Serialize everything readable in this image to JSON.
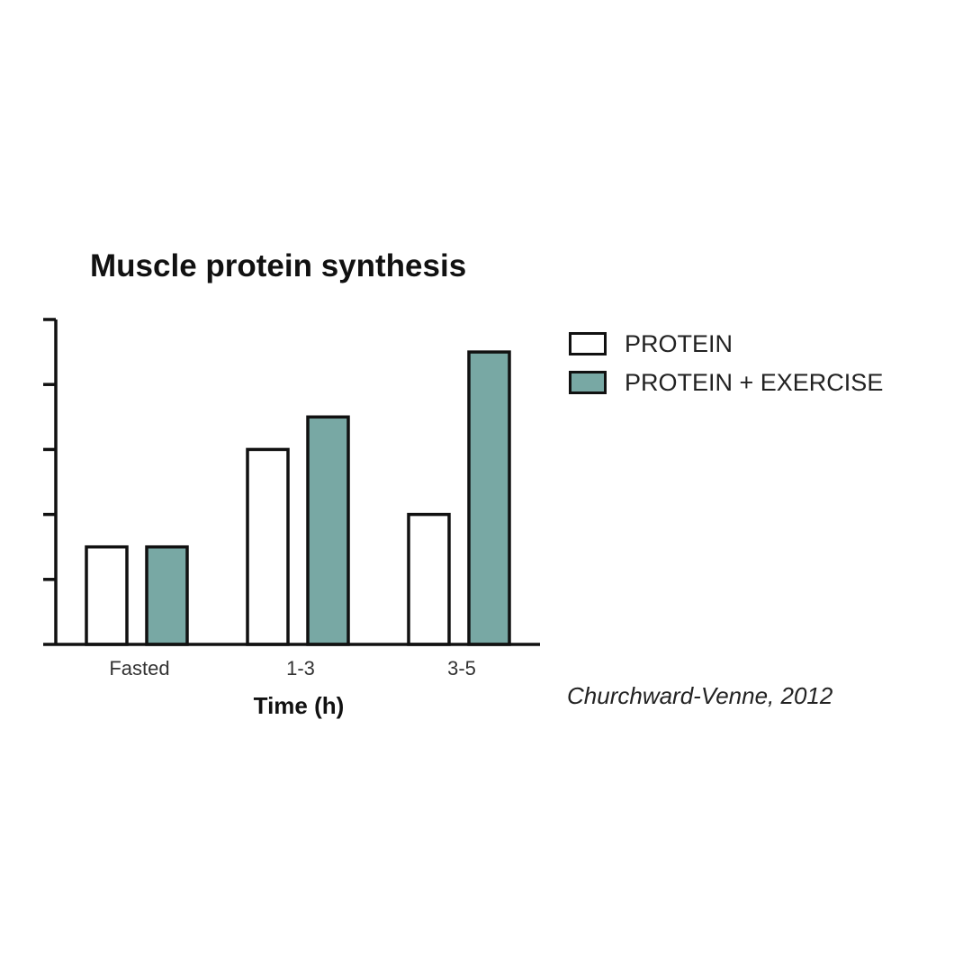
{
  "chart_data": {
    "type": "bar",
    "title": "Muscle protein synthesis",
    "xlabel": "Time (h)",
    "ylabel": "",
    "categories": [
      "Fasted",
      "1-3",
      "3-5"
    ],
    "series": [
      {
        "name": "PROTEIN",
        "values": [
          1.5,
          3.0,
          2.0
        ],
        "color": "#ffffff"
      },
      {
        "name": "PROTEIN + EXERCISE",
        "values": [
          1.5,
          3.5,
          4.5
        ],
        "color": "#78a8a4"
      }
    ],
    "ylim": [
      0,
      5
    ],
    "yticks": [
      0,
      1,
      2,
      3,
      4,
      5
    ],
    "ytick_labels_shown": false,
    "grid": false,
    "legend_position": "top-right, outside plot",
    "annotation": "Churchward-Venne, 2012"
  }
}
